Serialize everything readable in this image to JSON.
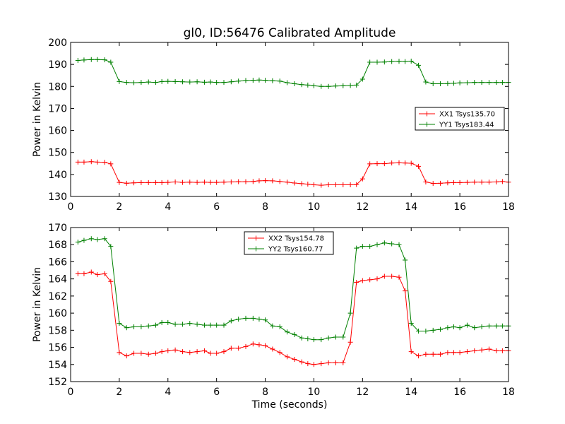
{
  "title": "gl0, ID:56476 Calibrated Amplitude",
  "chart_data": [
    {
      "type": "line",
      "ylabel": "Power in Kelvin",
      "xlabel": "",
      "xlim": [
        0,
        18
      ],
      "ylim": [
        130,
        200
      ],
      "xticks": [
        0,
        2,
        4,
        6,
        8,
        10,
        12,
        14,
        16,
        18
      ],
      "yticks": [
        130,
        140,
        150,
        160,
        170,
        180,
        190,
        200
      ],
      "grid": false,
      "legend": "right",
      "x": [
        0.3,
        0.55,
        0.85,
        1.1,
        1.4,
        1.65,
        2.0,
        2.3,
        2.6,
        2.9,
        3.2,
        3.5,
        3.75,
        4.0,
        4.3,
        4.6,
        4.9,
        5.2,
        5.5,
        5.75,
        6.0,
        6.3,
        6.6,
        6.9,
        7.2,
        7.5,
        7.75,
        8.0,
        8.3,
        8.6,
        8.9,
        9.2,
        9.5,
        9.75,
        10.0,
        10.3,
        10.6,
        10.9,
        11.2,
        11.5,
        11.75,
        12.0,
        12.3,
        12.6,
        12.9,
        13.2,
        13.5,
        13.75,
        14.0,
        14.3,
        14.6,
        14.9,
        15.2,
        15.5,
        15.75,
        16.0,
        16.3,
        16.6,
        16.9,
        17.2,
        17.5,
        17.75,
        18.0
      ],
      "series": [
        {
          "name": "XX1 Tsys135.70",
          "color": "#ff0000",
          "values": [
            145.6,
            145.6,
            145.8,
            145.6,
            145.5,
            144.8,
            136.4,
            136.0,
            136.2,
            136.3,
            136.3,
            136.3,
            136.3,
            136.4,
            136.6,
            136.4,
            136.5,
            136.4,
            136.5,
            136.4,
            136.4,
            136.5,
            136.6,
            136.7,
            136.7,
            136.8,
            137.1,
            137.2,
            137.1,
            136.8,
            136.5,
            136.1,
            135.8,
            135.6,
            135.3,
            135.1,
            135.3,
            135.3,
            135.3,
            135.3,
            135.4,
            138.0,
            144.8,
            144.9,
            144.9,
            145.2,
            145.3,
            145.2,
            145.1,
            143.7,
            136.6,
            135.9,
            136.0,
            136.2,
            136.3,
            136.3,
            136.4,
            136.5,
            136.5,
            136.5,
            136.6,
            136.8,
            136.5
          ]
        },
        {
          "name": "YY1 Tsys183.44",
          "color": "#008000",
          "values": [
            191.8,
            192.0,
            192.2,
            192.2,
            192.1,
            191.0,
            182.2,
            181.8,
            181.7,
            181.8,
            182.0,
            181.8,
            182.2,
            182.3,
            182.2,
            182.1,
            182.0,
            182.1,
            181.9,
            182.0,
            181.8,
            181.8,
            182.1,
            182.4,
            182.7,
            182.8,
            182.9,
            182.8,
            182.6,
            182.4,
            181.7,
            181.2,
            180.8,
            180.6,
            180.3,
            180.0,
            180.0,
            180.2,
            180.3,
            180.4,
            180.6,
            183.3,
            191.0,
            191.0,
            191.1,
            191.3,
            191.4,
            191.3,
            191.5,
            189.6,
            182.0,
            181.2,
            181.2,
            181.3,
            181.4,
            181.6,
            181.7,
            181.8,
            181.8,
            181.8,
            181.8,
            181.8,
            181.8
          ]
        }
      ]
    },
    {
      "type": "line",
      "ylabel": "Power in Kelvin",
      "xlabel": "Time (seconds)",
      "xlim": [
        0,
        18
      ],
      "ylim": [
        152,
        170
      ],
      "xticks": [
        0,
        2,
        4,
        6,
        8,
        10,
        12,
        14,
        16,
        18
      ],
      "yticks": [
        152,
        154,
        156,
        158,
        160,
        162,
        164,
        166,
        168,
        170
      ],
      "grid": false,
      "legend": "top-center",
      "x": [
        0.3,
        0.55,
        0.85,
        1.1,
        1.4,
        1.65,
        2.0,
        2.3,
        2.6,
        2.9,
        3.2,
        3.5,
        3.75,
        4.0,
        4.3,
        4.6,
        4.9,
        5.2,
        5.5,
        5.75,
        6.0,
        6.3,
        6.6,
        6.9,
        7.2,
        7.5,
        7.75,
        8.0,
        8.3,
        8.6,
        8.9,
        9.2,
        9.5,
        9.75,
        10.0,
        10.3,
        10.6,
        10.9,
        11.2,
        11.5,
        11.75,
        12.0,
        12.3,
        12.6,
        12.9,
        13.2,
        13.5,
        13.75,
        14.0,
        14.3,
        14.6,
        14.9,
        15.2,
        15.5,
        15.75,
        16.0,
        16.3,
        16.6,
        16.9,
        17.2,
        17.5,
        17.75,
        18.0
      ],
      "series": [
        {
          "name": "XX2 Tsys154.78",
          "color": "#ff0000",
          "values": [
            164.6,
            164.6,
            164.8,
            164.5,
            164.6,
            163.7,
            155.4,
            155.0,
            155.3,
            155.3,
            155.2,
            155.3,
            155.5,
            155.6,
            155.7,
            155.5,
            155.4,
            155.5,
            155.6,
            155.3,
            155.3,
            155.5,
            155.9,
            155.9,
            156.1,
            156.4,
            156.3,
            156.2,
            155.8,
            155.4,
            154.9,
            154.6,
            154.3,
            154.1,
            154.0,
            154.1,
            154.2,
            154.2,
            154.2,
            156.6,
            163.6,
            163.8,
            163.9,
            164.0,
            164.3,
            164.3,
            164.2,
            162.6,
            155.5,
            155.0,
            155.2,
            155.2,
            155.2,
            155.4,
            155.4,
            155.4,
            155.5,
            155.6,
            155.7,
            155.8,
            155.6,
            155.6,
            155.6
          ]
        },
        {
          "name": "YY2 Tsys160.77",
          "color": "#008000",
          "values": [
            168.3,
            168.5,
            168.7,
            168.6,
            168.7,
            167.8,
            158.8,
            158.3,
            158.4,
            158.4,
            158.5,
            158.6,
            158.9,
            158.9,
            158.7,
            158.7,
            158.8,
            158.7,
            158.6,
            158.6,
            158.6,
            158.6,
            159.1,
            159.3,
            159.4,
            159.4,
            159.3,
            159.2,
            158.5,
            158.4,
            157.8,
            157.5,
            157.1,
            157.0,
            156.9,
            156.9,
            157.1,
            157.2,
            157.2,
            160.0,
            167.6,
            167.8,
            167.8,
            168.0,
            168.2,
            168.1,
            168.0,
            166.2,
            158.8,
            157.9,
            157.9,
            158.0,
            158.1,
            158.3,
            158.4,
            158.3,
            158.6,
            158.3,
            158.4,
            158.5,
            158.5,
            158.5,
            158.5
          ]
        }
      ]
    }
  ]
}
